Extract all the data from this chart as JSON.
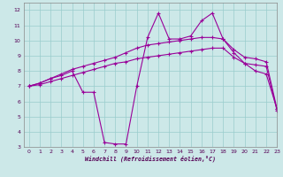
{
  "xlabel": "Windchill (Refroidissement éolien,°C)",
  "bg_color": "#cce8e8",
  "grid_color": "#99cccc",
  "line_color": "#990099",
  "xlim": [
    -0.5,
    23
  ],
  "ylim": [
    3,
    12.5
  ],
  "xticks": [
    0,
    1,
    2,
    3,
    4,
    5,
    6,
    7,
    8,
    9,
    10,
    11,
    12,
    13,
    14,
    15,
    16,
    17,
    18,
    19,
    20,
    21,
    22,
    23
  ],
  "yticks": [
    3,
    4,
    5,
    6,
    7,
    8,
    9,
    10,
    11,
    12
  ],
  "line1_x": [
    0,
    1,
    2,
    3,
    4,
    5,
    6,
    7,
    8,
    9,
    10,
    11,
    12,
    13,
    14,
    15,
    16,
    17,
    18,
    19,
    20,
    21,
    22,
    23
  ],
  "line1_y": [
    7.0,
    7.2,
    7.5,
    7.7,
    8.0,
    6.6,
    6.6,
    3.3,
    3.2,
    3.2,
    7.0,
    10.2,
    11.8,
    10.1,
    10.1,
    10.3,
    11.3,
    11.8,
    10.1,
    9.2,
    8.5,
    8.0,
    7.8,
    5.5
  ],
  "line2_x": [
    0,
    1,
    2,
    3,
    4,
    5,
    6,
    7,
    8,
    9,
    10,
    11,
    12,
    13,
    14,
    15,
    16,
    17,
    18,
    19,
    20,
    21,
    22,
    23
  ],
  "line2_y": [
    7.0,
    7.2,
    7.5,
    7.8,
    8.1,
    8.3,
    8.5,
    8.7,
    8.9,
    9.2,
    9.5,
    9.7,
    9.8,
    9.9,
    10.0,
    10.1,
    10.2,
    10.2,
    10.1,
    9.4,
    8.9,
    8.8,
    8.6,
    5.5
  ],
  "line3_x": [
    0,
    1,
    2,
    3,
    4,
    5,
    6,
    7,
    8,
    9,
    10,
    11,
    12,
    13,
    14,
    15,
    16,
    17,
    18,
    19,
    20,
    21,
    22,
    23
  ],
  "line3_y": [
    7.0,
    7.1,
    7.3,
    7.5,
    7.7,
    7.9,
    8.1,
    8.3,
    8.5,
    8.6,
    8.8,
    8.9,
    9.0,
    9.1,
    9.2,
    9.3,
    9.4,
    9.5,
    9.5,
    8.9,
    8.5,
    8.4,
    8.3,
    5.4
  ]
}
